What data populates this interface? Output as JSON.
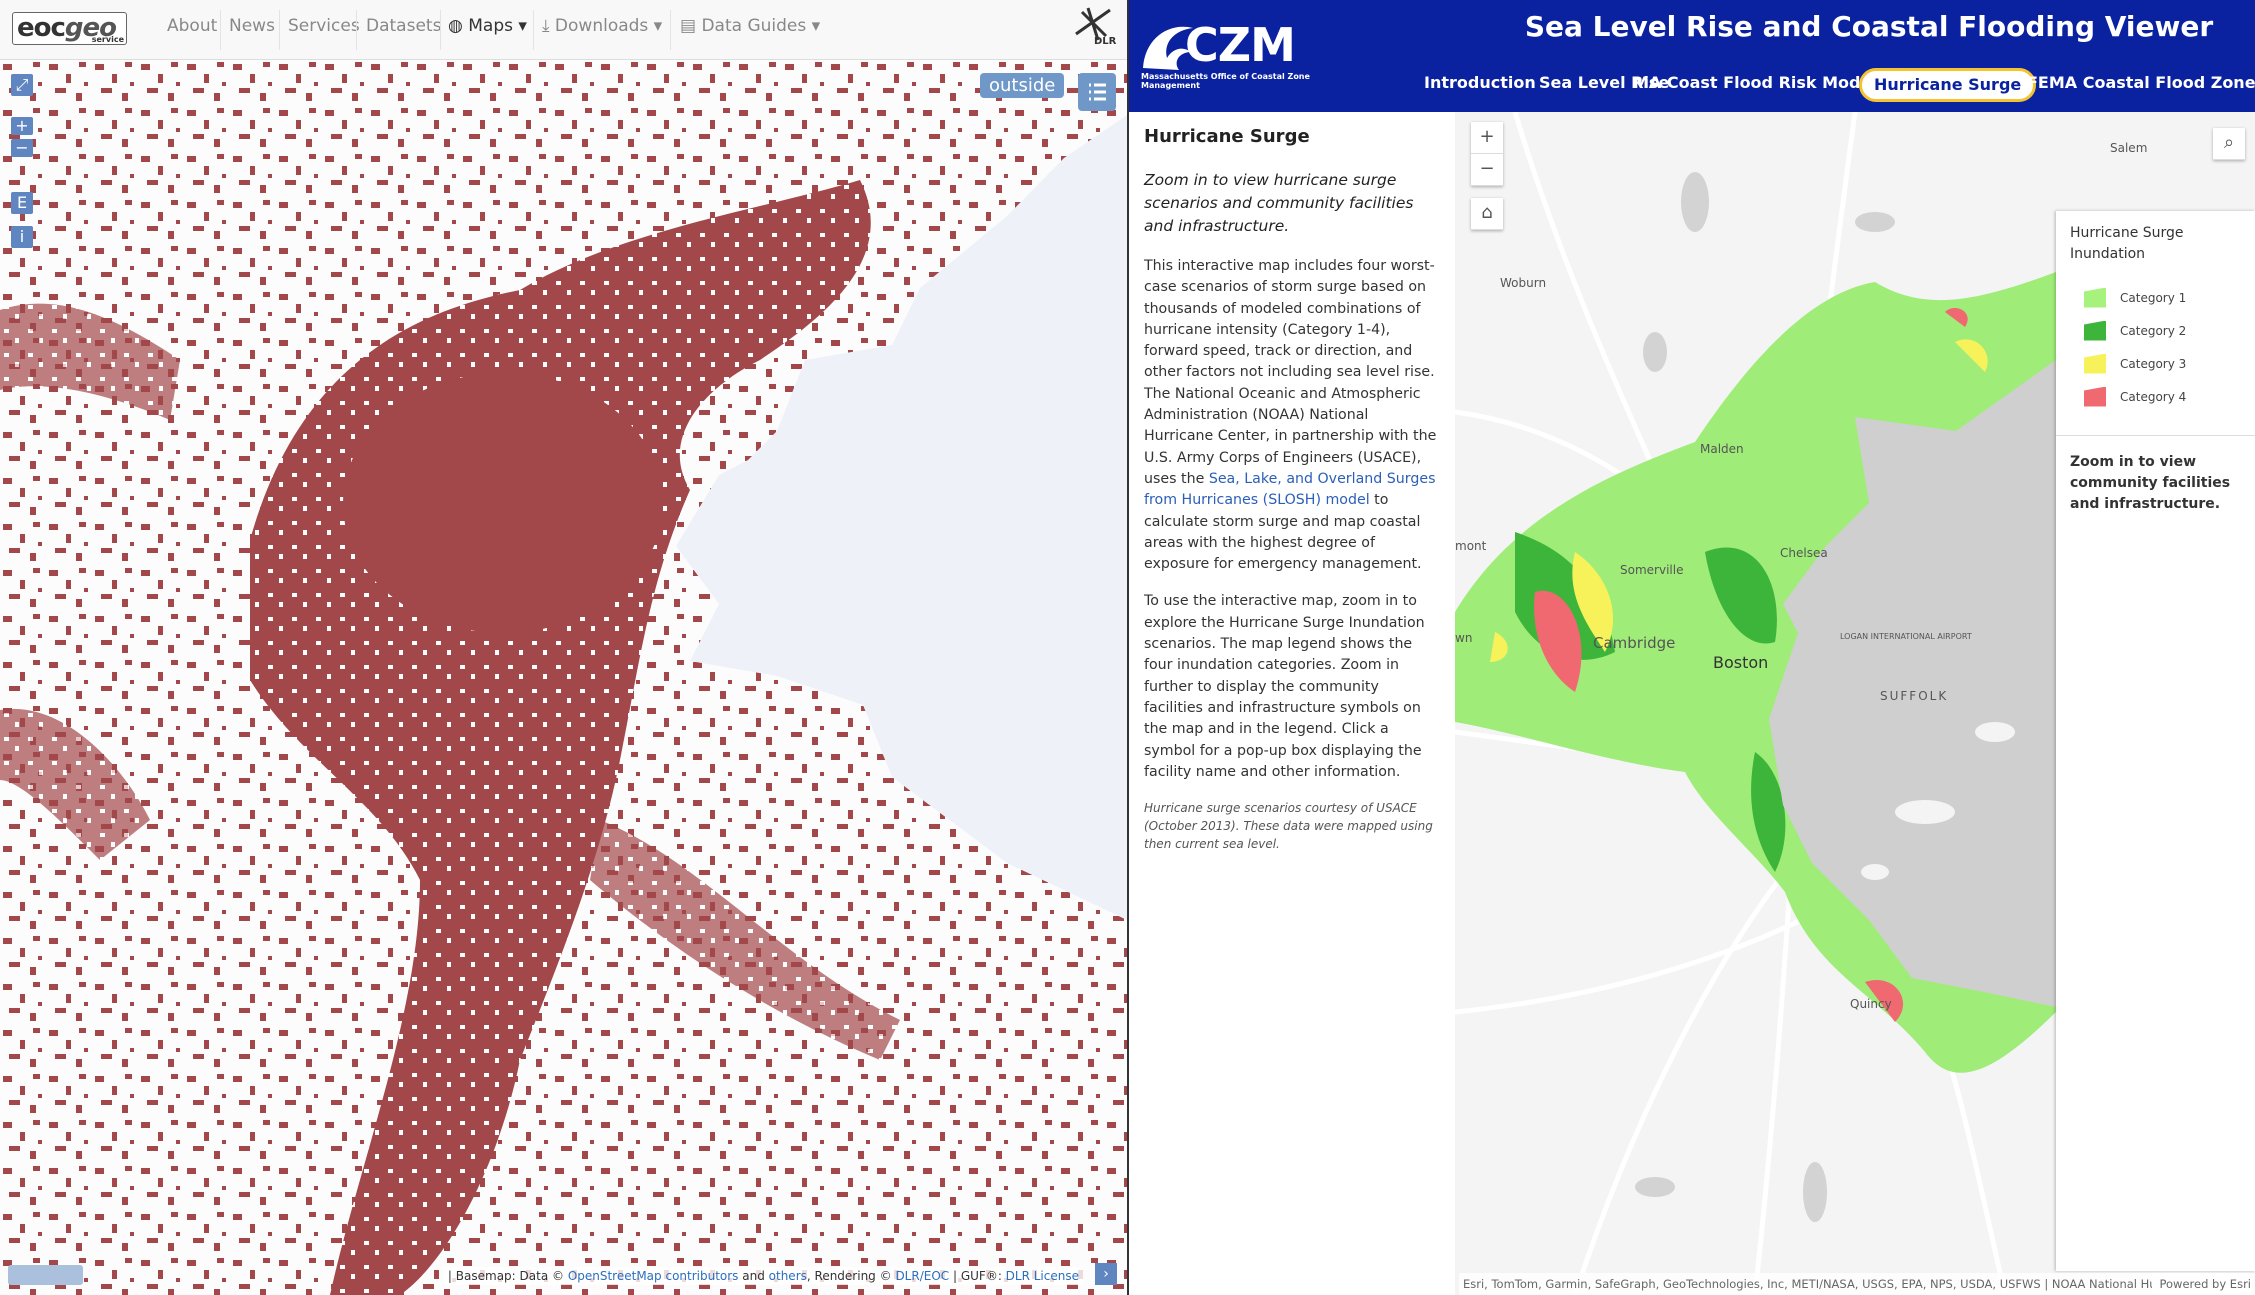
{
  "left_nav": {
    "logo_main": "eoc",
    "logo_second": "geo",
    "logo_sub": "service",
    "items": [
      "About",
      "News",
      "Services",
      "Datasets",
      "Maps",
      "Downloads",
      "Data Guides"
    ],
    "brand": "DLR"
  },
  "left_map": {
    "toggle": "outside",
    "controls": [
      "+",
      "−",
      "E",
      "i"
    ],
    "attribution": [
      {
        "text": "| Basemap: Data © "
      },
      {
        "text": "OpenStreetMap contributors",
        "link": true
      },
      {
        "text": " and "
      },
      {
        "text": "others",
        "link": true
      },
      {
        "text": ", Rendering © "
      },
      {
        "text": "DLR/EOC",
        "link": true
      },
      {
        "text": " | GUF®: "
      },
      {
        "text": "DLR License",
        "link": true
      }
    ]
  },
  "header": {
    "logo": "CZM",
    "logo_sub": "Massachusetts Office of Coastal Zone Management",
    "title": "Sea Level Rise and Coastal Flooding Viewer",
    "tabs": [
      "Introduction",
      "Sea Level Rise",
      "MA Coast Flood Risk Model",
      "Hurricane Surge",
      "FEMA Coastal Flood Zones"
    ],
    "active_tab": 3
  },
  "sidebar": {
    "heading": "Hurricane Surge",
    "intro": "Zoom in to view hurricane surge scenarios and community facilities and infrastructure.",
    "paragraph1_before": "This interactive map includes four worst-case scenarios of storm surge based on thousands of modeled combinations of hurricane intensity (Category 1-4), forward speed, track or direction, and other factors not including sea level rise. The National Oceanic and Atmospheric Administration (NOAA) National Hurricane Center, in partnership with the U.S. Army Corps of Engineers (USACE), uses the ",
    "paragraph1_link": "Sea, Lake, and Overland Surges from Hurricanes (SLOSH) model",
    "paragraph1_after": " to calculate storm surge and map coastal areas with the highest degree of exposure for emergency management.",
    "paragraph2": "To use the interactive map, zoom in to explore the Hurricane Surge Inundation scenarios. The map legend shows the four inundation categories. Zoom in further to display the community facilities and infrastructure symbols on the map and in the legend.  Click a symbol for a pop-up box displaying the facility name and other information.",
    "note": "Hurricane surge scenarios courtesy of USACE (October 2013). These data were mapped using then current sea level."
  },
  "right_map": {
    "controls": [
      "+",
      "−"
    ],
    "places": [
      "Salem",
      "Woburn",
      "Malden",
      "Chelsea",
      "Somerville",
      "Cambridge",
      "Boston",
      "LOGAN INTERNATIONAL AIRPORT",
      "SUFFOLK",
      "Quincy",
      "mont",
      "wn"
    ],
    "attribution": "Esri, TomTom, Garmin, SafeGraph, GeoTechnologies, Inc, METI/NASA, USGS, EPA, NPS, USDA, USFWS | NOAA National Hurri...",
    "powered": "Powered by Esri"
  },
  "legend": {
    "title": "Hurricane Surge Inundation",
    "items": [
      {
        "name": "Category 1",
        "color": "#a6f27c"
      },
      {
        "name": "Category 2",
        "color": "#3db53a"
      },
      {
        "name": "Category 3",
        "color": "#f8f25a"
      },
      {
        "name": "Category 4",
        "color": "#f06870"
      }
    ],
    "note": "Zoom in to view community facilities and infrastructure."
  }
}
